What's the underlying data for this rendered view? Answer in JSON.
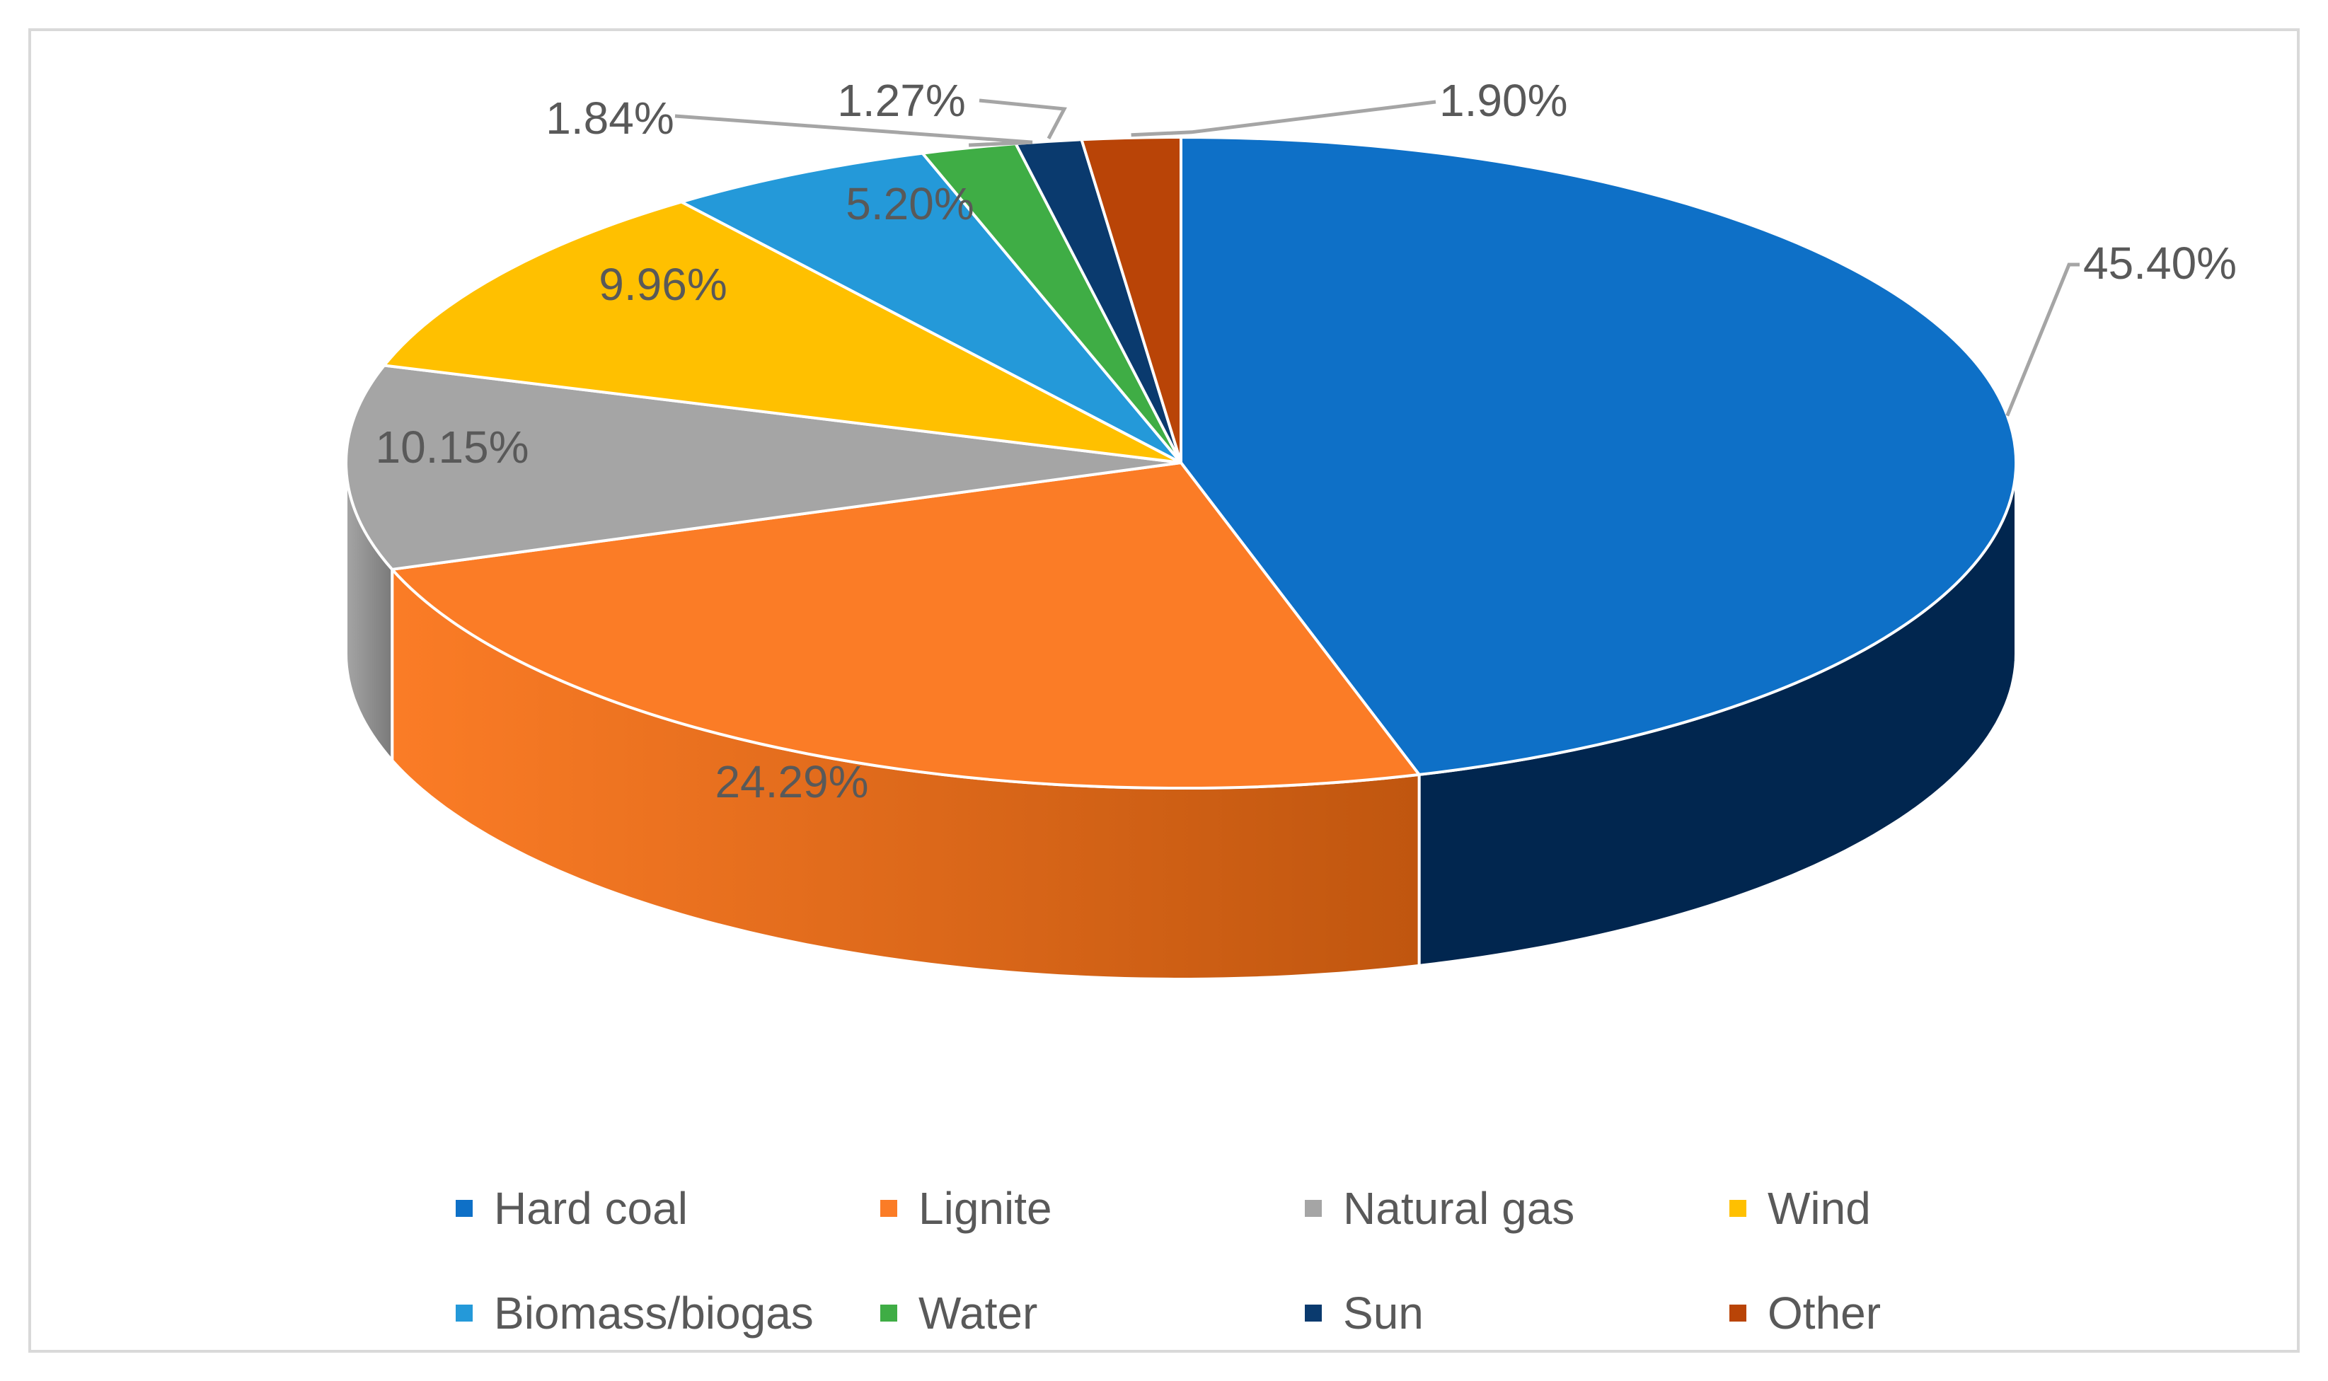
{
  "chart_data": {
    "type": "pie",
    "title": "",
    "categories": [
      "Hard coal",
      "Lignite",
      "Natural gas",
      "Wind",
      "Biomass/biogas",
      "Water",
      "Sun",
      "Other"
    ],
    "values": [
      45.4,
      24.29,
      10.15,
      9.96,
      5.2,
      1.84,
      1.27,
      1.9
    ],
    "data_labels": [
      "45.40%",
      "24.29%",
      "10.15%",
      "9.96%",
      "5.20%",
      "1.84%",
      "1.27%",
      "1.90%"
    ],
    "colors": [
      "#0e70c7",
      "#fb7c26",
      "#a5a5a5",
      "#ffc000",
      "#2499d9",
      "#3fad45",
      "#0a3a6e",
      "#b94407"
    ],
    "side_colors": [
      "#01264f",
      "#c0560f",
      "#7a7a7a",
      "#b88a00",
      "#1a6fa0",
      "#2b7a30",
      "#061f3d",
      "#7a2c04"
    ],
    "legend_position": "bottom",
    "style": "3d-pie"
  }
}
